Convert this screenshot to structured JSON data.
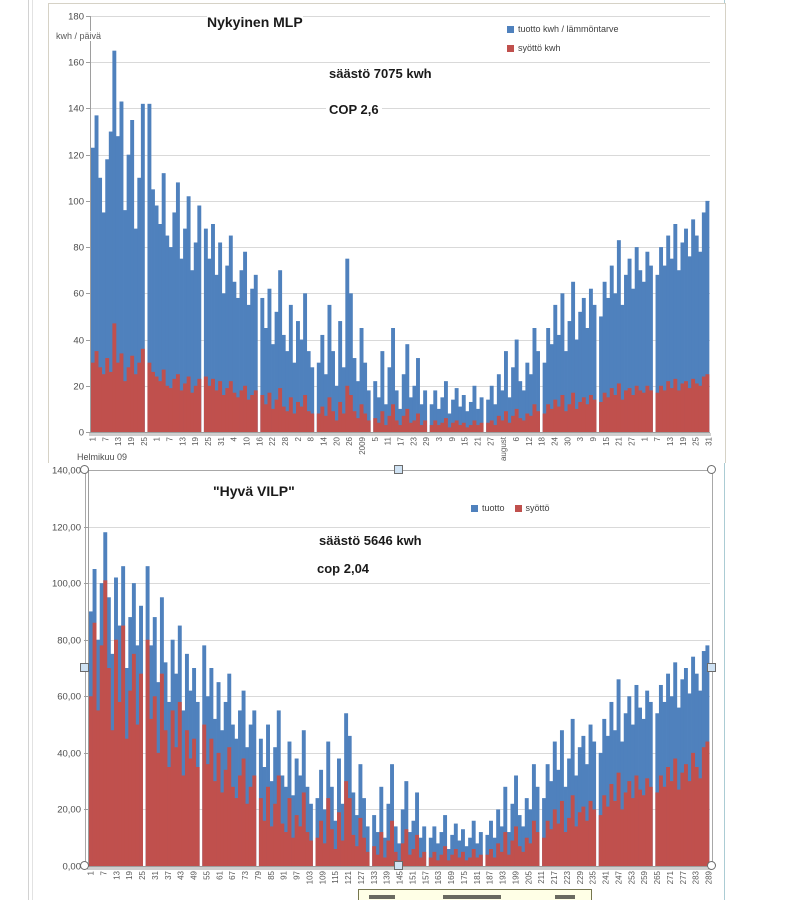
{
  "page": {
    "background": "#ffffff"
  },
  "colors": {
    "series_blue": "#4F81BD",
    "series_red": "#C0504D",
    "gridline": "#D9D9D9",
    "axis": "#9E9E9E",
    "tick_text": "#595959",
    "selection_handle_fill": "#CFE2F3"
  },
  "chart_data": [
    {
      "type": "bar",
      "title": "Nykyinen MLP",
      "ylabel": "kwh / päivä",
      "annotations": [
        "säästö 7075 kwh",
        "COP 2,6"
      ],
      "ylim": [
        0,
        180
      ],
      "ytick_step": 20,
      "yticks": [
        "180",
        "160",
        "140",
        "120",
        "100",
        "80",
        "60",
        "40",
        "20",
        "0"
      ],
      "xticks": [
        "1",
        "7",
        "13",
        "19",
        "25",
        "1",
        "7",
        "13",
        "19",
        "25",
        "31",
        "4",
        "10",
        "16",
        "22",
        "28",
        "2",
        "8",
        "14",
        "20",
        "26",
        "2009",
        "5",
        "11",
        "17",
        "23",
        "29",
        "3",
        "9",
        "15",
        "21",
        "27",
        "august",
        "6",
        "12",
        "18",
        "24",
        "30",
        "3",
        "9",
        "15",
        "21",
        "27",
        "1",
        "7",
        "13",
        "19",
        "25",
        "31"
      ],
      "xaxis_month_note": "Helmikuu 09",
      "grid": true,
      "legend_position": "top-right",
      "legend": [
        {
          "label": "tuotto kwh / lämmöntarve",
          "color": "#4F81BD"
        },
        {
          "label": "syöttö kwh",
          "color": "#C0504D"
        }
      ],
      "series": [
        {
          "name": "tuotto kwh / lämmöntarve",
          "color": "#4F81BD",
          "groups": [
            [
              123,
              137,
              110,
              95,
              118,
              130,
              165,
              128,
              143,
              96,
              120,
              135,
              88,
              110,
              142
            ],
            [
              142,
              105,
              98,
              90,
              112,
              85,
              80,
              95,
              108,
              75,
              88,
              102,
              70,
              82,
              98
            ],
            [
              88,
              75,
              90,
              68,
              82,
              60,
              72,
              85,
              65,
              58,
              70,
              78,
              55,
              62,
              68
            ],
            [
              58,
              45,
              62,
              38,
              52,
              70,
              42,
              35,
              55,
              30,
              48,
              40,
              60,
              35,
              28
            ],
            [
              30,
              42,
              25,
              55,
              35,
              20,
              48,
              28,
              75,
              60,
              32,
              22,
              45,
              30,
              18
            ],
            [
              22,
              15,
              35,
              12,
              28,
              45,
              18,
              10,
              25,
              38,
              15,
              20,
              32,
              12,
              18
            ],
            [
              12,
              18,
              10,
              15,
              22,
              8,
              14,
              19,
              11,
              16,
              9,
              13,
              20,
              10,
              15
            ],
            [
              14,
              20,
              12,
              25,
              18,
              35,
              15,
              28,
              40,
              22,
              18,
              30,
              25,
              45,
              35
            ],
            [
              30,
              45,
              38,
              55,
              42,
              60,
              35,
              48,
              65,
              40,
              52,
              58,
              45,
              62,
              55
            ],
            [
              50,
              65,
              58,
              72,
              60,
              83,
              55,
              68,
              75,
              62,
              80,
              70,
              65,
              78,
              72
            ],
            [
              68,
              80,
              72,
              85,
              75,
              90,
              70,
              82,
              88,
              76,
              92,
              85,
              78,
              95,
              100
            ]
          ]
        },
        {
          "name": "syöttö kwh",
          "color": "#C0504D",
          "groups": [
            [
              30,
              35,
              28,
              25,
              32,
              26,
              47,
              30,
              34,
              22,
              28,
              33,
              25,
              30,
              36
            ],
            [
              30,
              26,
              24,
              22,
              27,
              20,
              19,
              23,
              25,
              18,
              21,
              24,
              17,
              20,
              23
            ],
            [
              24,
              20,
              23,
              18,
              22,
              16,
              19,
              22,
              17,
              15,
              18,
              20,
              14,
              16,
              18
            ],
            [
              16,
              12,
              17,
              10,
              14,
              19,
              11,
              9,
              15,
              8,
              13,
              11,
              16,
              9,
              8
            ],
            [
              8,
              11,
              7,
              15,
              9,
              5,
              13,
              8,
              20,
              16,
              9,
              6,
              12,
              8,
              5
            ],
            [
              6,
              4,
              9,
              3,
              7,
              12,
              5,
              3,
              7,
              10,
              4,
              5,
              8,
              3,
              5
            ],
            [
              3,
              5,
              3,
              4,
              6,
              2,
              4,
              5,
              3,
              4,
              2,
              3,
              5,
              3,
              4
            ],
            [
              4,
              5,
              3,
              7,
              5,
              9,
              4,
              7,
              10,
              6,
              5,
              8,
              7,
              12,
              9
            ],
            [
              8,
              12,
              10,
              14,
              11,
              16,
              9,
              12,
              17,
              10,
              13,
              15,
              12,
              16,
              14
            ],
            [
              13,
              17,
              15,
              19,
              16,
              21,
              14,
              18,
              19,
              16,
              20,
              18,
              17,
              20,
              18
            ],
            [
              17,
              20,
              18,
              22,
              19,
              23,
              18,
              21,
              22,
              19,
              23,
              21,
              20,
              24,
              25
            ]
          ]
        }
      ]
    },
    {
      "type": "bar",
      "title": "\"Hyvä VILP\"",
      "annotations": [
        "säästö 5646 kwh",
        "cop 2,04"
      ],
      "ylim": [
        0,
        140
      ],
      "ytick_step": 20,
      "yticks": [
        "140,00",
        "120,00",
        "100,00",
        "80,00",
        "60,00",
        "40,00",
        "20,00",
        "0,00"
      ],
      "xticks": [
        "1",
        "7",
        "13",
        "19",
        "25",
        "31",
        "37",
        "43",
        "49",
        "55",
        "61",
        "67",
        "73",
        "79",
        "85",
        "91",
        "97",
        "103",
        "109",
        "115",
        "121",
        "127",
        "133",
        "139",
        "145",
        "151",
        "157",
        "163",
        "169",
        "175",
        "181",
        "187",
        "193",
        "199",
        "205",
        "211",
        "217",
        "223",
        "229",
        "235",
        "241",
        "247",
        "253",
        "259",
        "265",
        "271",
        "277",
        "283",
        "289"
      ],
      "grid": true,
      "legend_position": "top-right",
      "legend": [
        {
          "label": "tuotto",
          "color": "#4F81BD"
        },
        {
          "label": "syöttö",
          "color": "#C0504D"
        }
      ],
      "series": [
        {
          "name": "tuotto",
          "color": "#4F81BD",
          "groups": [
            [
              90,
              105,
              80,
              100,
              118,
              95,
              75,
              102,
              85,
              106,
              70,
              88,
              100,
              78,
              92
            ],
            [
              106,
              78,
              88,
              65,
              95,
              72,
              58,
              80,
              68,
              85,
              55,
              75,
              62,
              70,
              58
            ],
            [
              78,
              60,
              70,
              52,
              65,
              48,
              58,
              68,
              50,
              45,
              55,
              62,
              42,
              50,
              55
            ],
            [
              45,
              35,
              50,
              30,
              42,
              55,
              32,
              28,
              44,
              25,
              38,
              32,
              48,
              28,
              22
            ],
            [
              24,
              34,
              20,
              44,
              28,
              16,
              38,
              22,
              54,
              46,
              26,
              18,
              36,
              24,
              14
            ],
            [
              18,
              12,
              28,
              10,
              22,
              36,
              14,
              8,
              20,
              30,
              12,
              16,
              26,
              10,
              14
            ],
            [
              10,
              14,
              8,
              12,
              18,
              6,
              11,
              15,
              9,
              13,
              7,
              10,
              16,
              8,
              12
            ],
            [
              11,
              16,
              10,
              20,
              14,
              28,
              12,
              22,
              32,
              18,
              14,
              24,
              20,
              36,
              28
            ],
            [
              24,
              36,
              30,
              44,
              34,
              48,
              28,
              38,
              52,
              32,
              42,
              46,
              36,
              50,
              44
            ],
            [
              40,
              52,
              46,
              58,
              48,
              66,
              44,
              54,
              60,
              50,
              64,
              56,
              52,
              62,
              58
            ],
            [
              54,
              64,
              58,
              68,
              60,
              72,
              56,
              66,
              70,
              61,
              74,
              68,
              62,
              76,
              78
            ]
          ]
        },
        {
          "name": "syöttö",
          "color": "#C0504D",
          "groups": [
            [
              60,
              86,
              55,
              78,
              101,
              70,
              48,
              80,
              58,
              85,
              45,
              62,
              75,
              50,
              68
            ],
            [
              80,
              52,
              60,
              40,
              68,
              48,
              35,
              55,
              42,
              58,
              32,
              48,
              38,
              45,
              35
            ],
            [
              50,
              36,
              45,
              30,
              40,
              26,
              34,
              42,
              28,
              24,
              32,
              38,
              22,
              28,
              32
            ],
            [
              24,
              16,
              28,
              14,
              22,
              32,
              15,
              12,
              24,
              10,
              18,
              14,
              26,
              12,
              9
            ],
            [
              10,
              16,
              8,
              24,
              13,
              6,
              19,
              9,
              30,
              24,
              11,
              7,
              17,
              10,
              5
            ],
            [
              7,
              4,
              12,
              3,
              9,
              16,
              5,
              2,
              8,
              13,
              4,
              6,
              11,
              3,
              5
            ],
            [
              3,
              5,
              2,
              4,
              7,
              2,
              4,
              6,
              3,
              5,
              2,
              3,
              6,
              3,
              4
            ],
            [
              4,
              6,
              3,
              8,
              5,
              12,
              4,
              9,
              14,
              7,
              5,
              10,
              8,
              16,
              12
            ],
            [
              10,
              16,
              13,
              20,
              15,
              23,
              12,
              17,
              25,
              14,
              19,
              21,
              16,
              23,
              20
            ],
            [
              18,
              25,
              21,
              29,
              23,
              33,
              20,
              26,
              30,
              24,
              32,
              27,
              25,
              31,
              28
            ],
            [
              26,
              32,
              28,
              35,
              30,
              38,
              27,
              33,
              36,
              30,
              40,
              35,
              31,
              42,
              44
            ]
          ]
        }
      ]
    }
  ]
}
